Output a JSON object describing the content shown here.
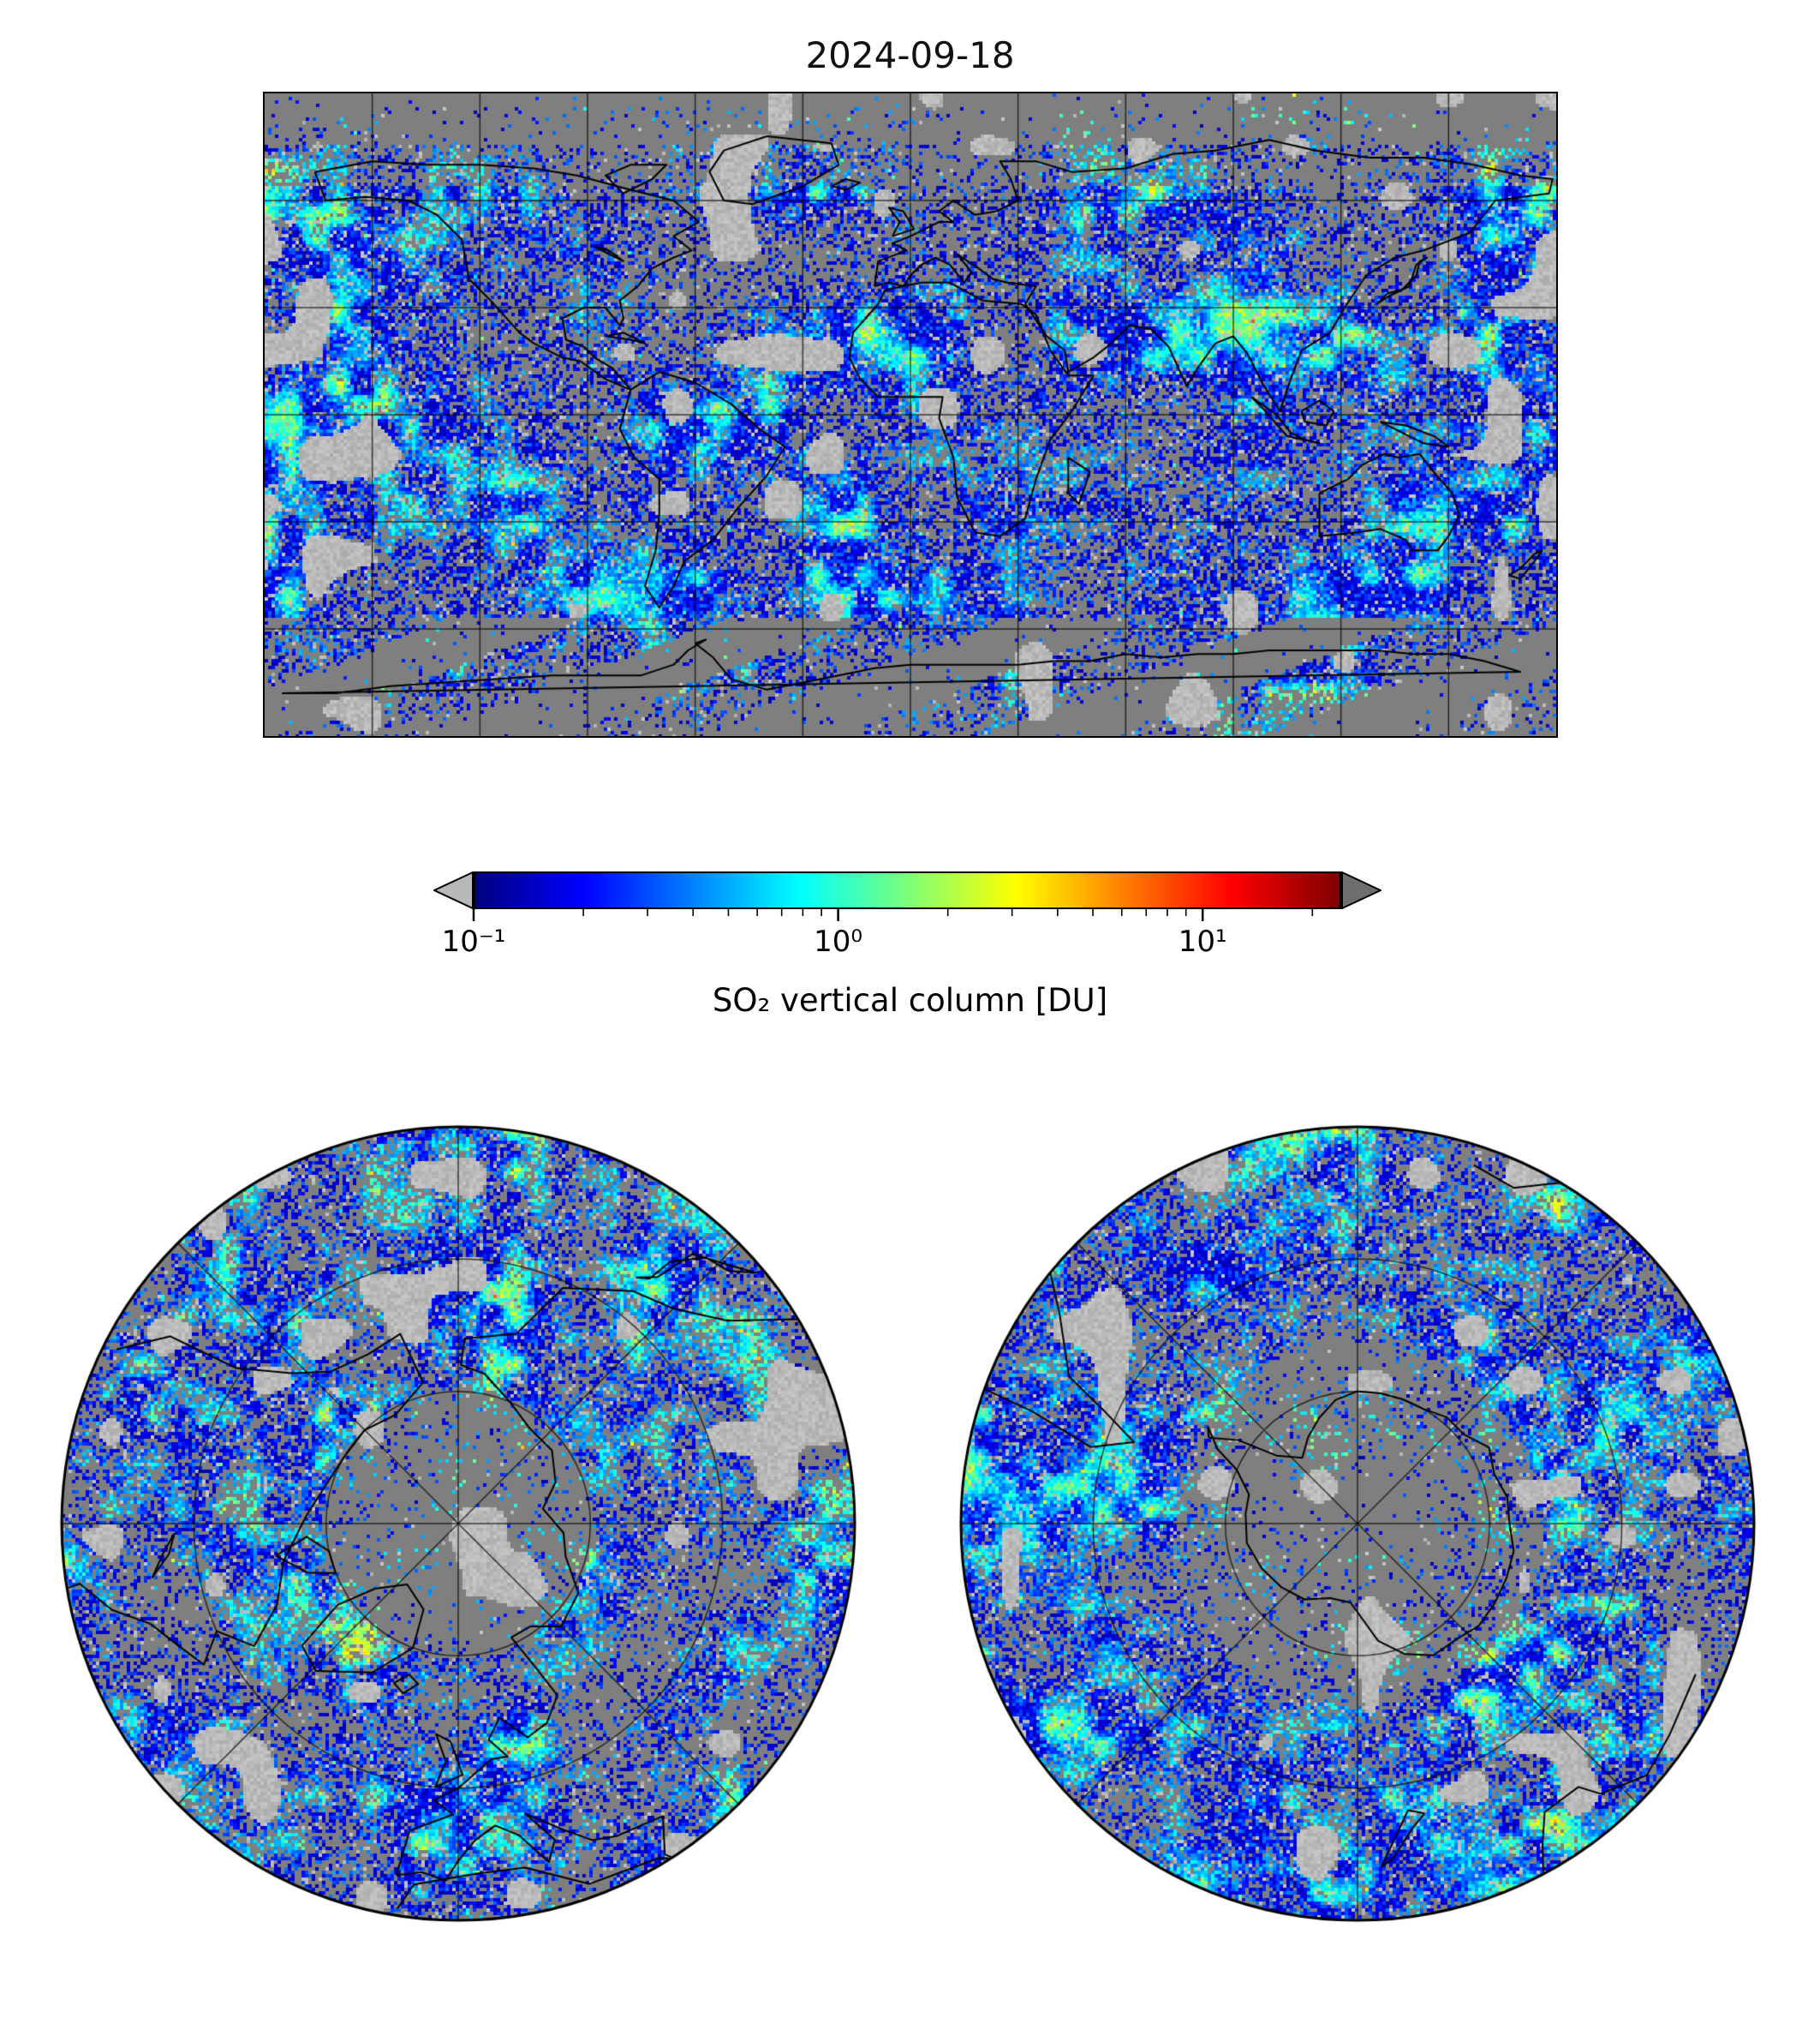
{
  "title": "2024-09-18",
  "colorbar": {
    "label": "SO₂ vertical column [DU]",
    "tick_labels": [
      "10⁻¹",
      "10⁰",
      "10¹"
    ],
    "tick_values": [
      0.1,
      1,
      10
    ],
    "minor_tick_values": [
      0.2,
      0.3,
      0.4,
      0.5,
      0.6,
      0.7,
      0.8,
      0.9,
      2,
      3,
      4,
      5,
      6,
      7,
      8,
      9,
      20
    ],
    "vmin": 0.1,
    "vmax": 24,
    "scale": "log",
    "colormap": "jet",
    "under_arrow_color": "#b8b8b8",
    "over_arrow_color": "#6e6e6e"
  },
  "chart_data": {
    "type": "heatmap",
    "subtype": "satellite-trace-gas-map",
    "title": "2024-09-18",
    "colorbar_label": "SO₂ vertical column [DU]",
    "units": "DU",
    "scale": "log",
    "vmin": 0.1,
    "vmax": 24,
    "colorbar_ticks": [
      0.1,
      1,
      10
    ],
    "colormap": "jet",
    "no_data_color": "#7f7f7f",
    "below_range_color": "#c0c0c0",
    "panels": [
      {
        "id": "global",
        "projection": "equirectangular",
        "lon_range": [
          -180,
          180
        ],
        "lat_range": [
          -90,
          90
        ],
        "gridline_spacing_deg": 30,
        "coastlines": true
      },
      {
        "id": "north-polar",
        "projection": "north-polar-azimuthal",
        "pole": "north",
        "edge_latitude_deg": 30,
        "grid_circles": 2,
        "grid_spokes_deg": 45,
        "coastlines": true
      },
      {
        "id": "south-polar",
        "projection": "south-polar-azimuthal",
        "pole": "south",
        "edge_latitude_deg": -30,
        "grid_circles": 2,
        "grid_spokes_deg": 45,
        "coastlines": true
      }
    ],
    "field_description": "Daily global SO2 vertical column density from satellite measurements; speckled pixel field mostly 0.1-1 DU (blue), scattered 1-5 DU patches (cyan/green/yellow), gray pixels indicate no data"
  }
}
